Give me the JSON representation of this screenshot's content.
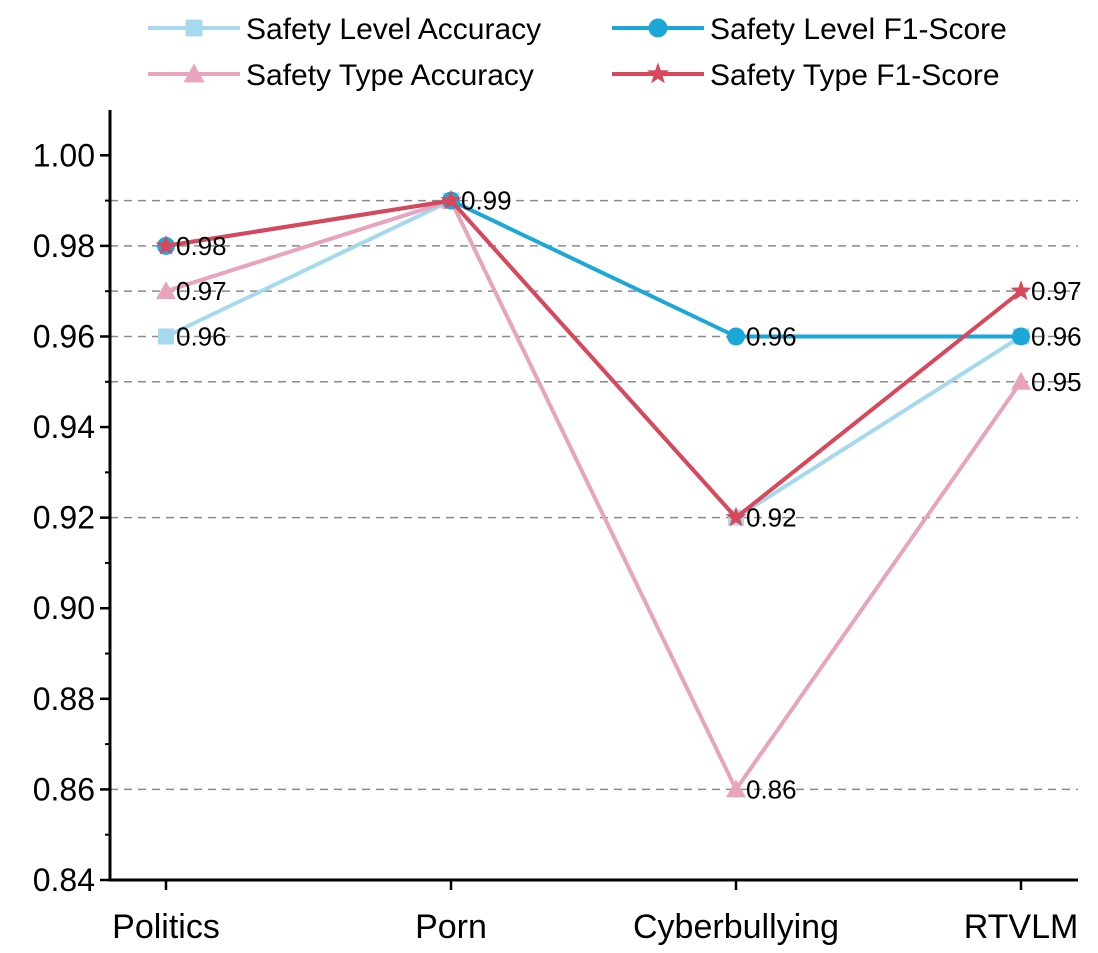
{
  "chart_data": {
    "type": "line",
    "title": "",
    "xlabel": "",
    "ylabel": "",
    "categories": [
      "Politics",
      "Porn",
      "Cyberbullying",
      "RTVLM"
    ],
    "ylim": [
      0.84,
      1.01
    ],
    "yticks": [
      "0.84",
      "0.86",
      "0.88",
      "0.90",
      "0.92",
      "0.94",
      "0.96",
      "0.98",
      "1.00"
    ],
    "grid": "dashed horizontal lines at 0.86, 0.92, 0.95, 0.96, 0.97, 0.98, 0.99",
    "legend_position": "top",
    "series": [
      {
        "name": "Safety Level Accuracy",
        "values": [
          0.96,
          0.99,
          0.92,
          0.96
        ],
        "color": "#a6d8ee",
        "marker": "square"
      },
      {
        "name": "Safety Level F1-Score",
        "values": [
          0.98,
          0.99,
          0.96,
          0.96
        ],
        "color": "#1ca7d9",
        "marker": "circle"
      },
      {
        "name": "Safety Type Accuracy",
        "values": [
          0.97,
          0.99,
          0.86,
          0.95
        ],
        "color": "#e8a3bd",
        "marker": "triangle"
      },
      {
        "name": "Safety Type F1-Score",
        "values": [
          0.98,
          0.99,
          0.92,
          0.97
        ],
        "color": "#d9475a",
        "marker": "star"
      }
    ],
    "data_labels": [
      {
        "x": "Politics",
        "text": "0.98",
        "value": 0.98
      },
      {
        "x": "Politics",
        "text": "0.97",
        "value": 0.97
      },
      {
        "x": "Politics",
        "text": "0.96",
        "value": 0.96
      },
      {
        "x": "Porn",
        "text": "0.99",
        "value": 0.99
      },
      {
        "x": "Cyberbullying",
        "text": "0.96",
        "value": 0.96
      },
      {
        "x": "Cyberbullying",
        "text": "0.92",
        "value": 0.92
      },
      {
        "x": "Cyberbullying",
        "text": "0.86",
        "value": 0.86
      },
      {
        "x": "RTVLM",
        "text": "0.97",
        "value": 0.97
      },
      {
        "x": "RTVLM",
        "text": "0.96",
        "value": 0.96
      },
      {
        "x": "RTVLM",
        "text": "0.95",
        "value": 0.95
      }
    ]
  }
}
